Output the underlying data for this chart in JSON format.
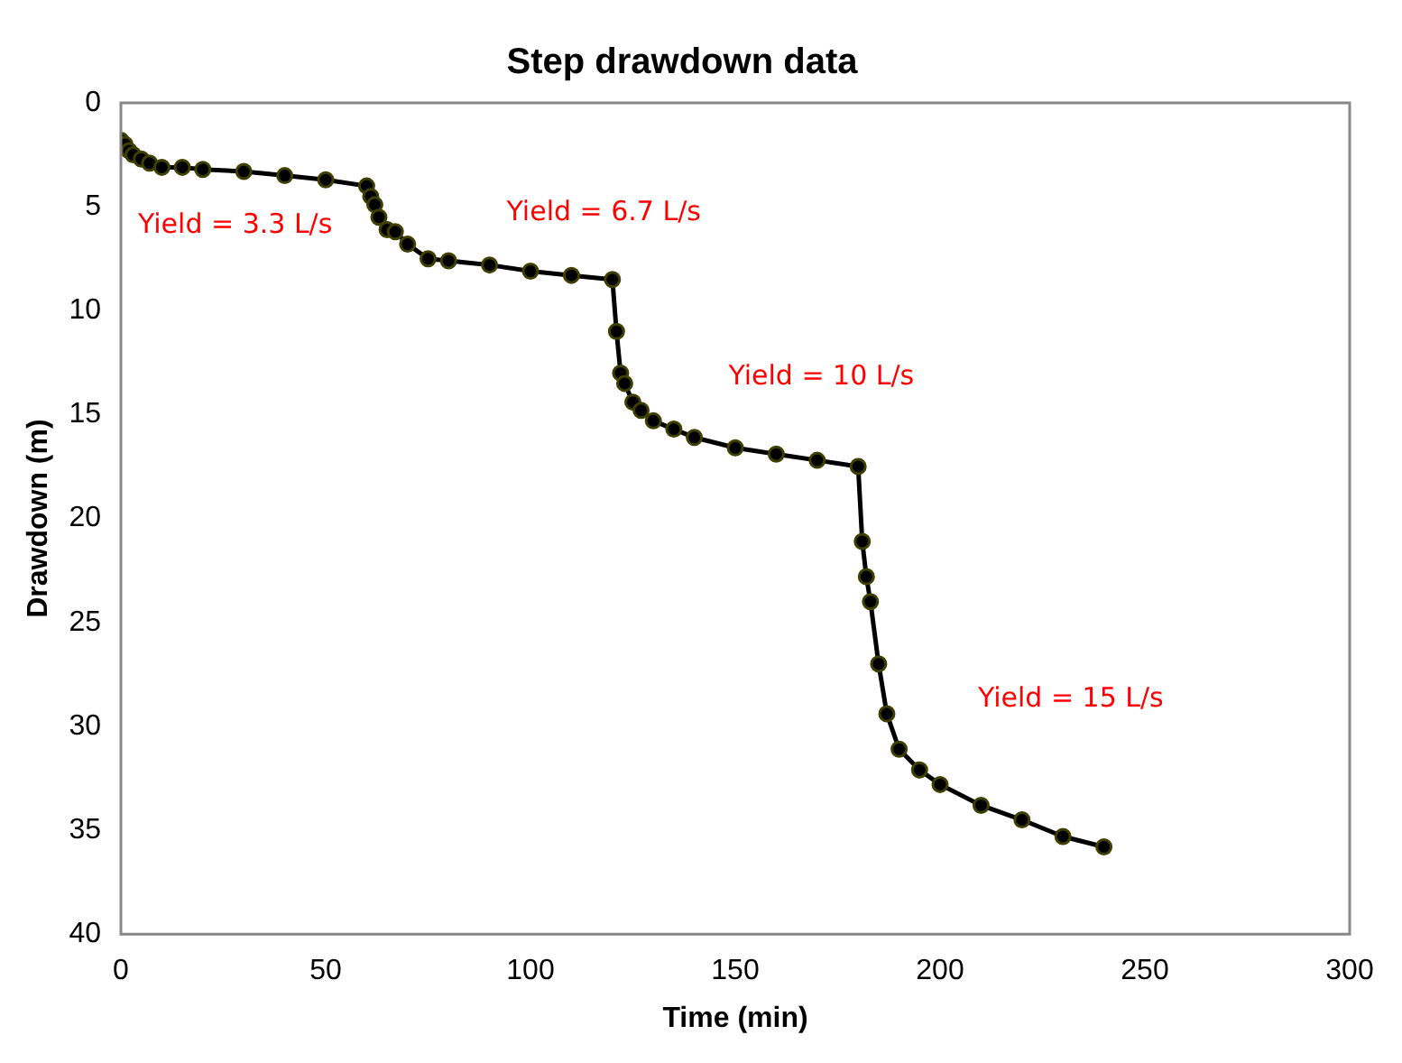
{
  "chart_data": {
    "type": "line",
    "title": "Step drawdown data",
    "xlabel": "Time (min)",
    "ylabel": "Drawdown (m)",
    "x": [
      0,
      1,
      2,
      3,
      5,
      7,
      10,
      15,
      20,
      30,
      40,
      50,
      60,
      61,
      62,
      63,
      65,
      67,
      70,
      75,
      80,
      90,
      100,
      110,
      120,
      121,
      122,
      123,
      125,
      127,
      130,
      135,
      140,
      150,
      160,
      170,
      180,
      181,
      182,
      183,
      185,
      187,
      190,
      195,
      200,
      210,
      220,
      230,
      240
    ],
    "series": [
      {
        "color": "#000000",
        "values": [
          1.8,
          2.0,
          2.3,
          2.5,
          2.7,
          2.9,
          3.1,
          3.1,
          3.2,
          3.3,
          3.5,
          3.7,
          4.0,
          4.5,
          4.9,
          5.5,
          6.1,
          6.2,
          6.8,
          7.5,
          7.6,
          7.8,
          8.1,
          8.3,
          8.5,
          11.0,
          13.0,
          13.5,
          14.4,
          14.8,
          15.3,
          15.7,
          16.1,
          16.6,
          16.9,
          17.2,
          17.5,
          21.1,
          22.8,
          24.0,
          27.0,
          29.4,
          31.1,
          32.1,
          32.8,
          33.8,
          34.5,
          35.3,
          35.8
        ]
      }
    ],
    "xlim": [
      0,
      300
    ],
    "xticks": [
      0,
      50,
      100,
      150,
      200,
      250,
      300
    ],
    "ylim": [
      40,
      0
    ],
    "yticks": [
      0,
      5,
      10,
      15,
      20,
      25,
      30,
      35,
      40
    ],
    "grid": false,
    "legend": false,
    "marker": "circle",
    "line_style": "solid",
    "annotations": [
      "Yield = 3.3 L/s",
      "Yield = 6.7 L/s",
      "Yield = 10 L/s",
      "Yield = 15 L/s"
    ]
  }
}
